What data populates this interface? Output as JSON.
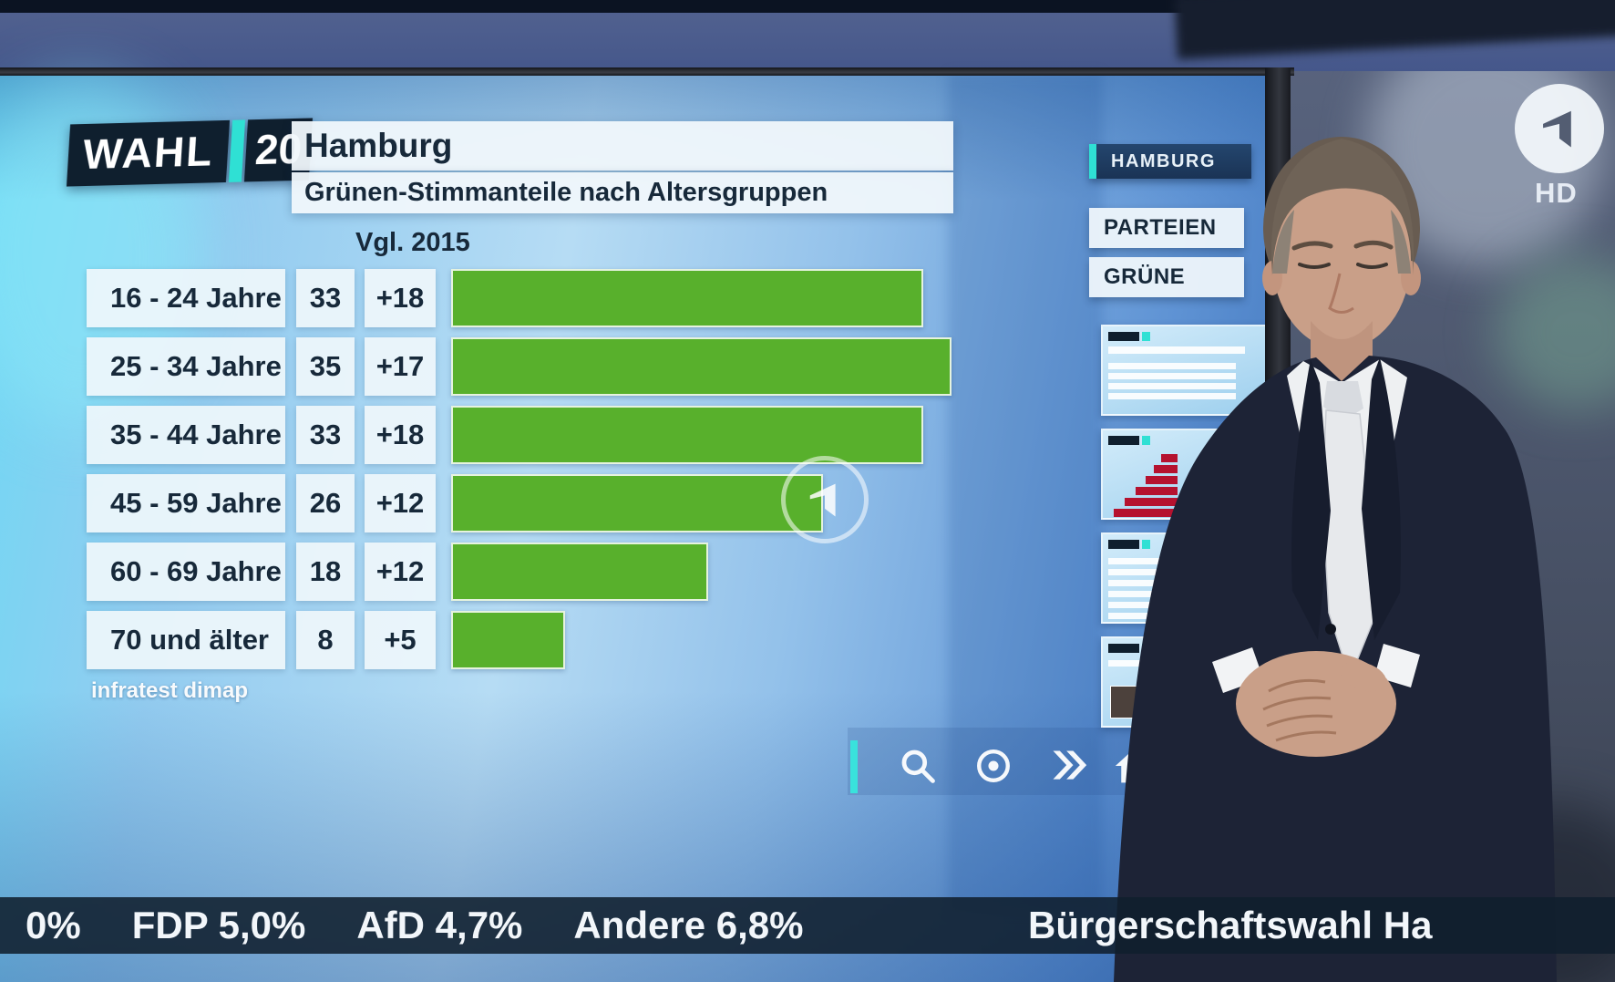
{
  "logo": {
    "wahl": "WAHL",
    "year": "20"
  },
  "channel": {
    "hd": "HD"
  },
  "screen": {
    "region": "Hamburg",
    "title": "Grünen-Stimmanteile nach Altersgruppen",
    "comparison": "Vgl. 2015",
    "source": "infratest dimap",
    "max_value": 35,
    "rows": [
      {
        "label": "16 - 24 Jahre",
        "value": 33,
        "diff": "+18"
      },
      {
        "label": "25 - 34 Jahre",
        "value": 35,
        "diff": "+17"
      },
      {
        "label": "35 - 44 Jahre",
        "value": 33,
        "diff": "+18"
      },
      {
        "label": "45 - 59 Jahre",
        "value": 26,
        "diff": "+12"
      },
      {
        "label": "60 - 69 Jahre",
        "value": 18,
        "diff": "+12"
      },
      {
        "label": "70 und älter",
        "value": 8,
        "diff": "+5"
      }
    ]
  },
  "sidebar": {
    "location": "HAMBURG",
    "menu": [
      "PARTEIEN",
      "GRÜNE"
    ]
  },
  "ticker": {
    "results": [
      "0%",
      "FDP 5,0%",
      "AfD 4,7%",
      "Andere 6,8%"
    ],
    "topic": "Bürgerschaftswahl Ha"
  },
  "colors": {
    "bar_green": "#58b02c",
    "accent_teal": "#2fe0d4",
    "thumb_red": "#b5122f",
    "ticker_bg": "#101f2d"
  },
  "chart_data": {
    "type": "bar",
    "orientation": "horizontal",
    "title": "Grünen-Stimmanteile nach Altersgruppen",
    "region": "Hamburg",
    "comparison_label": "Vgl. 2015",
    "categories": [
      "16 - 24 Jahre",
      "25 - 34 Jahre",
      "35 - 44 Jahre",
      "45 - 59 Jahre",
      "60 - 69 Jahre",
      "70 und älter"
    ],
    "values": [
      33,
      35,
      33,
      26,
      18,
      8
    ],
    "change_vs_2015": [
      18,
      17,
      18,
      12,
      12,
      5
    ],
    "unit": "percent",
    "xlim": [
      0,
      35
    ],
    "bar_color": "#58b02c",
    "source": "infratest dimap",
    "grid": false,
    "legend": false
  }
}
